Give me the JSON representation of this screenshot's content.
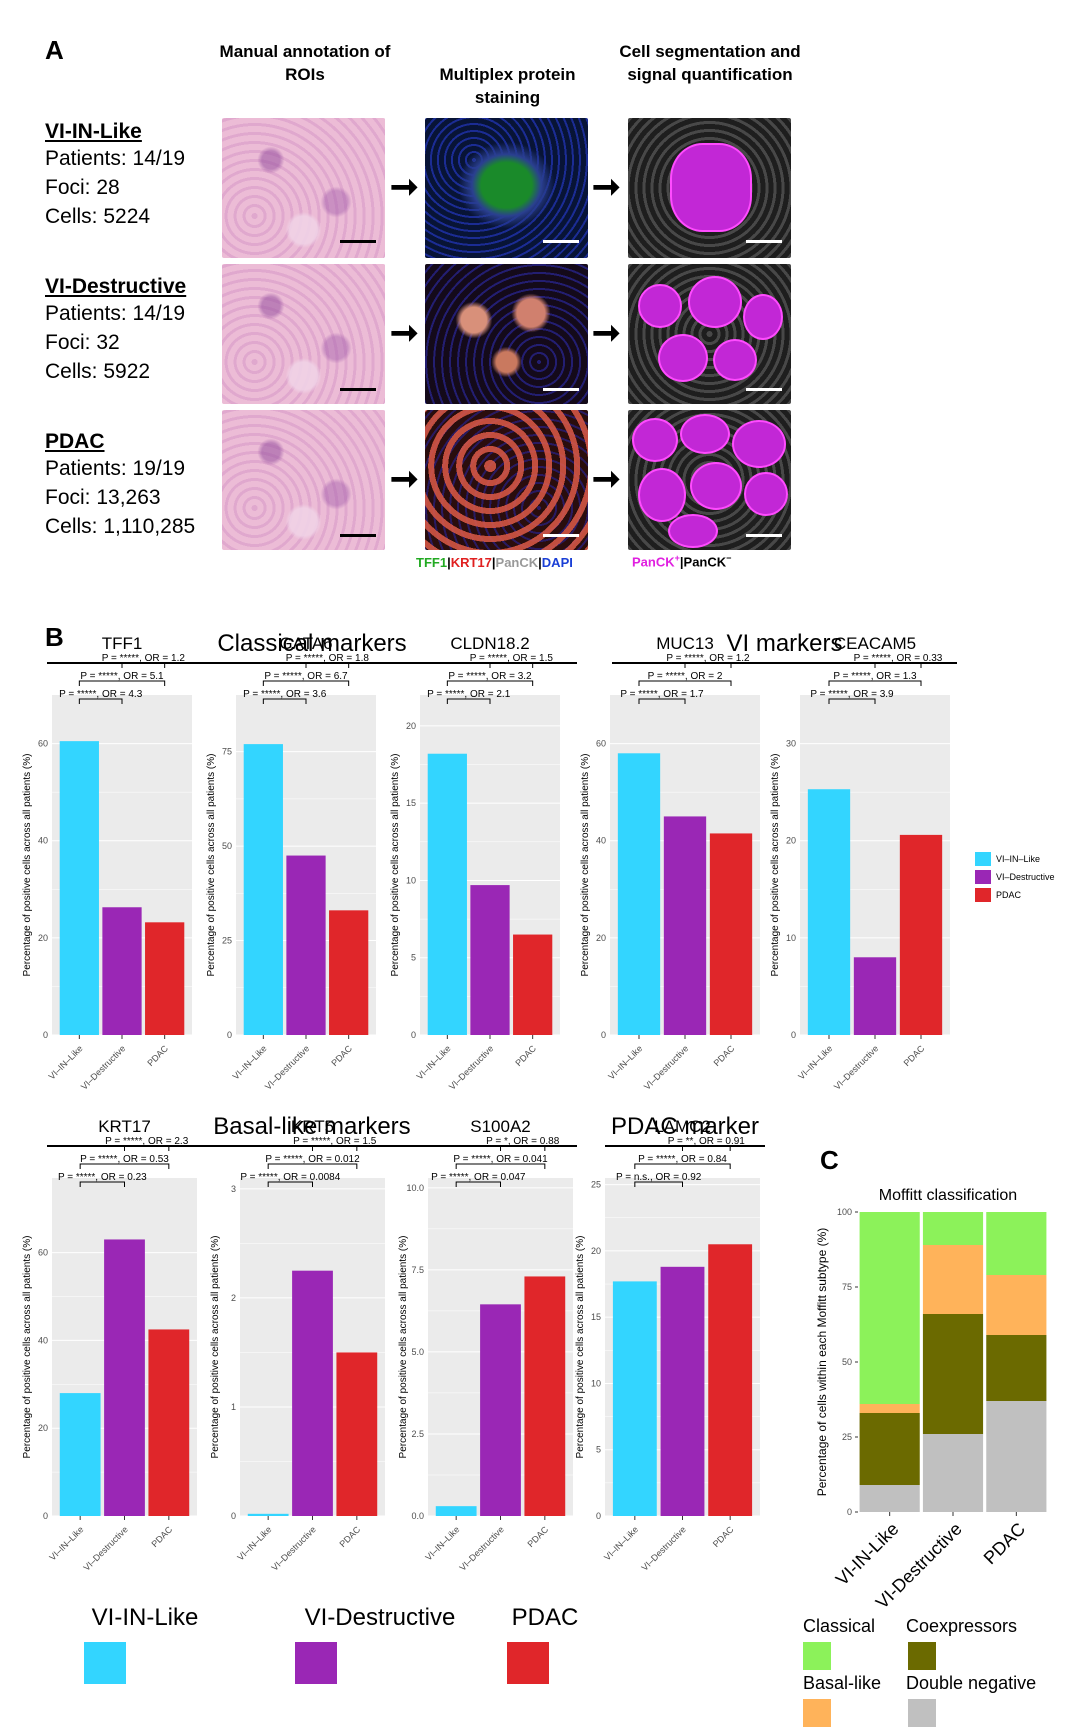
{
  "panelA": {
    "letter": "A",
    "column_headers": [
      "Manual annotation of ROIs",
      "Multiplex protein staining",
      "Cell segmentation and signal quantification"
    ],
    "rows": [
      {
        "title": "VI-IN-Like",
        "patients": "Patients: 14/19",
        "foci": "Foci: 28",
        "cells": "Cells: 5224"
      },
      {
        "title": "VI-Destructive",
        "patients": "Patients: 14/19",
        "foci": "Foci: 32",
        "cells": "Cells: 5922"
      },
      {
        "title": "PDAC",
        "patients": "Patients: 19/19",
        "foci": "Foci: 13,263",
        "cells": "Cells: 1,110,285"
      }
    ],
    "arrow": "➞",
    "stain_legend": [
      {
        "text": "TFF1",
        "color": "#22aa22"
      },
      {
        "text": "|",
        "color": "#000000"
      },
      {
        "text": "KRT17",
        "color": "#e02020"
      },
      {
        "text": "|",
        "color": "#000000"
      },
      {
        "text": "PanCK",
        "color": "#999999"
      },
      {
        "text": "|",
        "color": "#000000"
      },
      {
        "text": "DAPI",
        "color": "#1a3fd6"
      }
    ],
    "seg_legend": {
      "pos": "PanCK",
      "pos_sup": "+",
      "sep": "|",
      "neg": "PanCK",
      "neg_sup": "−",
      "pos_color": "#e020e0",
      "neg_color": "#000000"
    }
  },
  "panelB": {
    "letter": "B",
    "groups": {
      "classical": "Classical markers",
      "vi": "VI markers",
      "basal": "Basal-like markers",
      "pdac": "PDAC marker"
    },
    "ylabel": "Percentage of positive cells across all patients (%)",
    "legend": [
      {
        "label": "VI–IN–Like",
        "color": "#33d5ff"
      },
      {
        "label": "VI–Destructive",
        "color": "#9a27b5"
      },
      {
        "label": "PDAC",
        "color": "#e0262a"
      }
    ]
  },
  "chart_data": [
    {
      "type": "bar",
      "title": "TFF1",
      "categories": [
        "VI–IN–Like",
        "VI–Destructive",
        "PDAC"
      ],
      "values": [
        60.5,
        26.3,
        23.2
      ],
      "ylim": [
        0,
        70
      ],
      "ticks": [
        0,
        20,
        40,
        60
      ],
      "annotations": [
        "P = *****, OR = 4.3",
        "P = *****, OR = 5.1",
        "P = *****, OR = 1.2"
      ]
    },
    {
      "type": "bar",
      "title": "GATA6",
      "categories": [
        "VI–IN–Like",
        "VI–Destructive",
        "PDAC"
      ],
      "values": [
        77,
        47.5,
        33
      ],
      "ylim": [
        0,
        90
      ],
      "ticks": [
        0,
        25,
        50,
        75
      ],
      "annotations": [
        "P = *****, OR = 3.6",
        "P = *****, OR = 6.7",
        "P = *****, OR = 1.8"
      ]
    },
    {
      "type": "bar",
      "title": "CLDN18.2",
      "categories": [
        "VI–IN–Like",
        "VI–Destructive",
        "PDAC"
      ],
      "values": [
        18.2,
        9.7,
        6.5
      ],
      "ylim": [
        0,
        22
      ],
      "ticks": [
        0,
        5,
        10,
        15,
        20
      ],
      "annotations": [
        "P = *****, OR = 2.1",
        "P = *****, OR = 3.2",
        "P = *****, OR = 1.5"
      ]
    },
    {
      "type": "bar",
      "title": "MUC13",
      "categories": [
        "VI–IN–Like",
        "VI–Destructive",
        "PDAC"
      ],
      "values": [
        58,
        45,
        41.5
      ],
      "ylim": [
        0,
        70
      ],
      "ticks": [
        0,
        20,
        40,
        60
      ],
      "annotations": [
        "P = *****, OR = 1.7",
        "P = *****, OR = 2",
        "P = *****, OR = 1.2"
      ]
    },
    {
      "type": "bar",
      "title": "CEACAM5",
      "categories": [
        "VI–IN–Like",
        "VI–Destructive",
        "PDAC"
      ],
      "values": [
        25.3,
        8,
        20.6
      ],
      "ylim": [
        0,
        35
      ],
      "ticks": [
        0,
        10,
        20,
        30
      ],
      "annotations": [
        "P = *****, OR = 3.9",
        "P = *****, OR = 1.3",
        "P = *****, OR = 0.33"
      ]
    },
    {
      "type": "bar",
      "title": "KRT17",
      "categories": [
        "VI–IN–Like",
        "VI–Destructive",
        "PDAC"
      ],
      "values": [
        28,
        63,
        42.5
      ],
      "ylim": [
        0,
        77
      ],
      "ticks": [
        0,
        20,
        40,
        60
      ],
      "annotations": [
        "P = *****, OR = 0.23",
        "P = *****, OR = 0.53",
        "P = *****, OR = 2.3"
      ]
    },
    {
      "type": "bar",
      "title": "KRT5",
      "categories": [
        "VI–IN–Like",
        "VI–Destructive",
        "PDAC"
      ],
      "values": [
        0.02,
        2.25,
        1.5
      ],
      "ylim": [
        0,
        3.1
      ],
      "ticks": [
        0,
        1,
        2,
        3
      ],
      "annotations": [
        "P = *****, OR = 0.0084",
        "P = *****, OR = 0.012",
        "P = *****, OR = 1.5"
      ]
    },
    {
      "type": "bar",
      "title": "S100A2",
      "categories": [
        "VI–IN–Like",
        "VI–Destructive",
        "PDAC"
      ],
      "values": [
        0.3,
        6.45,
        7.3
      ],
      "ylim": [
        0,
        10.3
      ],
      "ticks": [
        0,
        2.5,
        5,
        7.5,
        10
      ],
      "tick_labels": [
        "0.0",
        "2.5",
        "5.0",
        "7.5",
        "10.0"
      ],
      "annotations": [
        "P = *****, OR = 0.047",
        "P = *****, OR = 0.041",
        "P = *, OR = 0.88"
      ]
    },
    {
      "type": "bar",
      "title": "LAMC2",
      "categories": [
        "VI–IN–Like",
        "VI–Destructive",
        "PDAC"
      ],
      "values": [
        17.7,
        18.8,
        20.5
      ],
      "ylim": [
        0,
        25.5
      ],
      "ticks": [
        0,
        5,
        10,
        15,
        20,
        25
      ],
      "annotations": [
        "P = n.s., OR = 0.92",
        "P = *****, OR = 0.84",
        "P = **, OR = 0.91"
      ]
    },
    {
      "type": "bar",
      "stacked": true,
      "title": "Moffitt classification",
      "xlabel": "",
      "ylabel": "Percentage of cells within each Moffitt subtype (%)",
      "categories": [
        "VI-IN-Like",
        "VI-Destructive",
        "PDAC"
      ],
      "ylim": [
        0,
        100
      ],
      "ticks": [
        0,
        25,
        50,
        75,
        100
      ],
      "series": [
        {
          "name": "Double negative",
          "color": "#c0c0c0",
          "values": [
            9,
            26,
            37
          ]
        },
        {
          "name": "Coexpressors",
          "color": "#6b6a00",
          "values": [
            24,
            40,
            22
          ]
        },
        {
          "name": "Basal-like",
          "color": "#ffb35a",
          "values": [
            3,
            23,
            20
          ]
        },
        {
          "name": "Classical",
          "color": "#8cf25a",
          "values": [
            64,
            11,
            21
          ]
        }
      ]
    }
  ],
  "panelC": {
    "letter": "C",
    "legend": [
      {
        "label": "Classical",
        "color": "#8cf25a"
      },
      {
        "label": "Coexpressors",
        "color": "#6b6a00"
      },
      {
        "label": "Basal-like",
        "color": "#ffb35a"
      },
      {
        "label": "Double negative",
        "color": "#c0c0c0"
      }
    ]
  },
  "bottom_legend": [
    {
      "label": "VI-IN-Like",
      "color": "#33d5ff"
    },
    {
      "label": "VI-Destructive",
      "color": "#9a27b5"
    },
    {
      "label": "PDAC",
      "color": "#e0262a"
    }
  ],
  "colors": {
    "panel_bg": "#ebebeb",
    "grid": "#ffffff",
    "axis_text": "#4d4d4d"
  }
}
